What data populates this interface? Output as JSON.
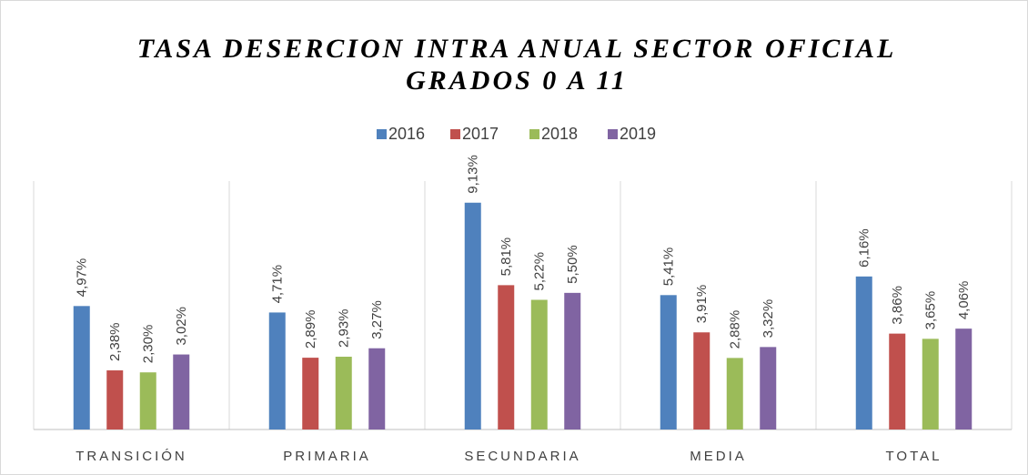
{
  "chart_data": {
    "type": "bar",
    "title": [
      "TASA DESERCION INTRA ANUAL SECTOR OFICIAL",
      "GRADOS 0 A 11"
    ],
    "categories": [
      "TRANSICIÓN",
      "PRIMARIA",
      "SECUNDARIA",
      "MEDIA",
      "TOTAL"
    ],
    "series": [
      {
        "name": "2016",
        "color": "#4f81bd",
        "values": [
          4.97,
          4.71,
          9.13,
          5.41,
          6.16
        ],
        "value_labels": [
          "4,97%",
          "4,71%",
          "9,13%",
          "5,41%",
          "6,16%"
        ]
      },
      {
        "name": "2017",
        "color": "#c0504d",
        "values": [
          2.38,
          2.89,
          5.81,
          3.91,
          3.86
        ],
        "value_labels": [
          "2,38%",
          "2,89%",
          "5,81%",
          "3,91%",
          "3,86%"
        ]
      },
      {
        "name": "2018",
        "color": "#9bbb59",
        "values": [
          2.3,
          2.93,
          5.22,
          2.88,
          3.65
        ],
        "value_labels": [
          "2,30%",
          "2,93%",
          "5,22%",
          "2,88%",
          "3,65%"
        ]
      },
      {
        "name": "2019",
        "color": "#8064a2",
        "values": [
          3.02,
          3.27,
          5.5,
          3.32,
          4.06
        ],
        "value_labels": [
          "3,02%",
          "3,27%",
          "5,50%",
          "3,32%",
          "4,06%"
        ]
      }
    ],
    "ylim": [
      0,
      10
    ],
    "legend": "top"
  }
}
